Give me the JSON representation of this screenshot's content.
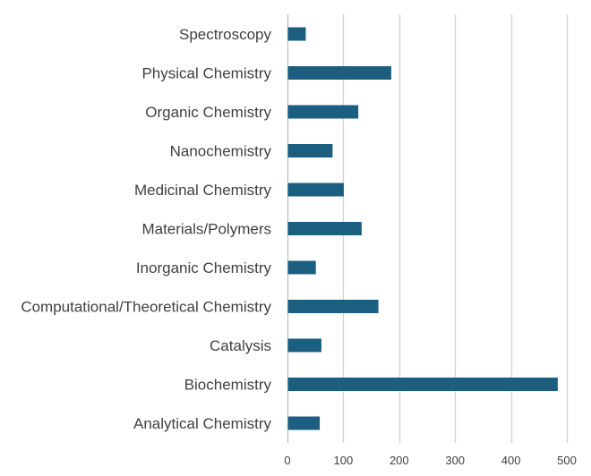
{
  "chart_data": {
    "type": "bar",
    "orientation": "horizontal",
    "title": "",
    "xlabel": "",
    "ylabel": "",
    "categories": [
      "Spectroscopy",
      "Physical Chemistry",
      "Organic Chemistry",
      "Nanochemistry",
      "Medicinal Chemistry",
      "Materials/Polymers",
      "Inorganic Chemistry",
      "Computational/Theoretical Chemistry",
      "Catalysis",
      "Biochemistry",
      "Analytical Chemistry"
    ],
    "values": [
      32,
      185,
      126,
      80,
      100,
      132,
      50,
      162,
      60,
      483,
      57
    ],
    "xlim": [
      0,
      500
    ],
    "xticks": [
      0,
      100,
      200,
      300,
      400,
      500
    ],
    "xtick_labels": [
      "0",
      "100",
      "200",
      "300",
      "400",
      "500"
    ],
    "grid": true,
    "legend": "none",
    "bar_color": "#1b5e7f"
  }
}
